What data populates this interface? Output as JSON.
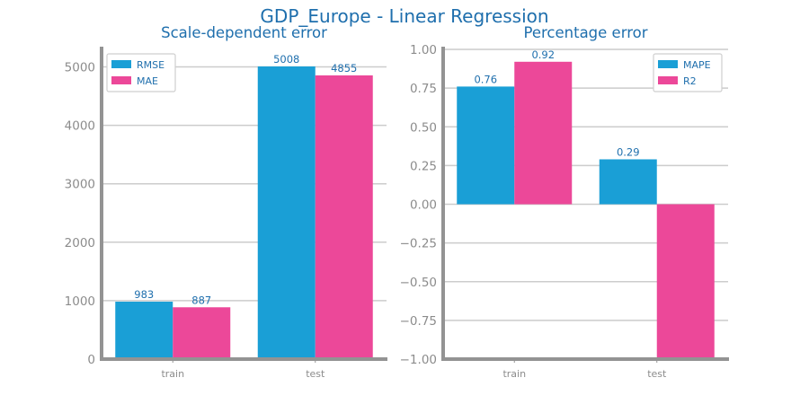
{
  "figure": {
    "title": "GDP_Europe - Linear Regression",
    "text_color": "#1f6fad",
    "tick_color": "#8c8c8c",
    "axis_color": "#939393",
    "grid_color": "#cccccc"
  },
  "chart_data": [
    {
      "type": "bar",
      "title": "Scale-dependent error",
      "categories": [
        "train",
        "test"
      ],
      "series": [
        {
          "name": "RMSE",
          "values": [
            983,
            5008
          ],
          "labels": [
            "983",
            "5008"
          ],
          "color": "#1a9fd6"
        },
        {
          "name": "MAE",
          "values": [
            887,
            4855
          ],
          "labels": [
            "887",
            "4855"
          ],
          "color": "#ec4899"
        }
      ],
      "ylim": [
        0,
        5300
      ],
      "yticks": [
        0,
        1000,
        2000,
        3000,
        4000,
        5000
      ],
      "ytick_labels": [
        "0",
        "1000",
        "2000",
        "3000",
        "4000",
        "5000"
      ],
      "grid": true,
      "legend": "top-left"
    },
    {
      "type": "bar",
      "title": "Percentage error",
      "categories": [
        "train",
        "test"
      ],
      "series": [
        {
          "name": "MAPE",
          "values": [
            0.76,
            0.29
          ],
          "labels": [
            "0.76",
            "0.29"
          ],
          "color": "#1a9fd6"
        },
        {
          "name": "R2",
          "values": [
            0.92,
            -1.0
          ],
          "labels": [
            "0.92",
            ""
          ],
          "color": "#ec4899"
        }
      ],
      "ylim": [
        -1.0,
        1.0
      ],
      "yticks": [
        -1.0,
        -0.75,
        -0.5,
        -0.25,
        0.0,
        0.25,
        0.5,
        0.75,
        1.0
      ],
      "ytick_labels": [
        "−1.00",
        "−0.75",
        "−0.50",
        "−0.25",
        "0.00",
        "0.25",
        "0.50",
        "0.75",
        "1.00"
      ],
      "grid": true,
      "legend": "top-right"
    }
  ]
}
